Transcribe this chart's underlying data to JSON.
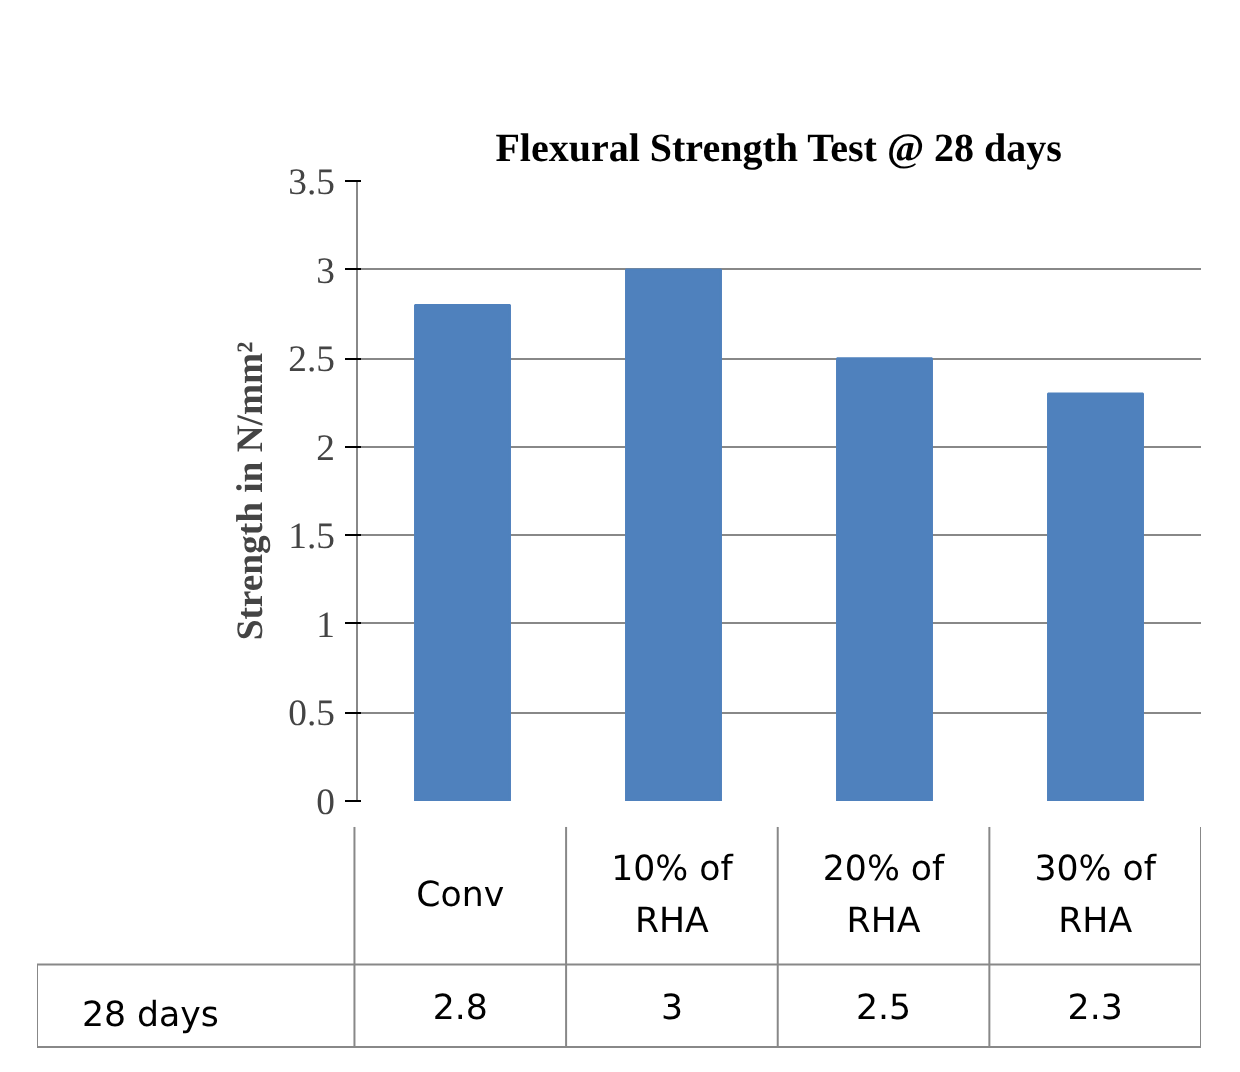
{
  "chart_data": {
    "type": "bar",
    "title": "Flexural Strength Test @ 28 days",
    "ylabel": "Strength in N/mm²",
    "categories": [
      "Conv",
      "10% of RHA",
      "20% of RHA",
      "30% of RHA"
    ],
    "series": [
      {
        "name": "28 days",
        "color": "#4f81bd",
        "values": [
          2.8,
          3,
          2.5,
          2.3
        ]
      }
    ],
    "ylim": [
      0,
      3.5
    ],
    "yticks": [
      0,
      0.5,
      1,
      1.5,
      2,
      2.5,
      3,
      3.5
    ],
    "grid": "y",
    "legend": "bottom",
    "data_labels": true
  }
}
